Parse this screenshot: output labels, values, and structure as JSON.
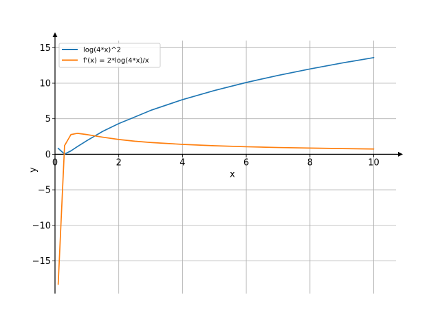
{
  "chart_data": {
    "type": "line",
    "xlabel": "x",
    "ylabel": "y",
    "xlim": [
      0,
      10.7
    ],
    "ylim": [
      -19.6,
      16
    ],
    "xticks": [
      0,
      2,
      4,
      6,
      8,
      10
    ],
    "yticks": [
      -15,
      -10,
      -5,
      0,
      5,
      10,
      15
    ],
    "xtick_labels": [
      "0",
      "2",
      "4",
      "6",
      "8",
      "10"
    ],
    "ytick_labels": [
      "−15",
      "−10",
      "−5",
      "0",
      "5",
      "10",
      "15"
    ],
    "grid": true,
    "legend_position": "top-left",
    "series": [
      {
        "name": "log(4*x)^2",
        "color": "#1f77b4",
        "x": [
          0.1,
          0.3,
          0.5,
          0.7,
          1.0,
          1.5,
          2.0,
          2.5,
          3.0,
          4.0,
          5.0,
          6.0,
          7.0,
          8.0,
          9.0,
          10.0
        ],
        "y": [
          0.84,
          0.03,
          0.48,
          1.07,
          1.92,
          3.23,
          4.32,
          5.24,
          6.17,
          7.69,
          8.97,
          10.1,
          11.1,
          12.0,
          12.84,
          13.6
        ]
      },
      {
        "name": "f'(x) = 2*log(4*x)/x",
        "color": "#ff7f0e",
        "x": [
          0.1,
          0.3,
          0.5,
          0.7,
          1.0,
          1.5,
          2.0,
          2.5,
          3.0,
          4.0,
          5.0,
          6.0,
          7.0,
          8.0,
          9.0,
          10.0
        ],
        "y": [
          -18.3,
          1.22,
          2.77,
          2.95,
          2.77,
          2.4,
          2.08,
          1.84,
          1.66,
          1.39,
          1.2,
          1.06,
          0.95,
          0.87,
          0.8,
          0.74
        ]
      }
    ]
  }
}
